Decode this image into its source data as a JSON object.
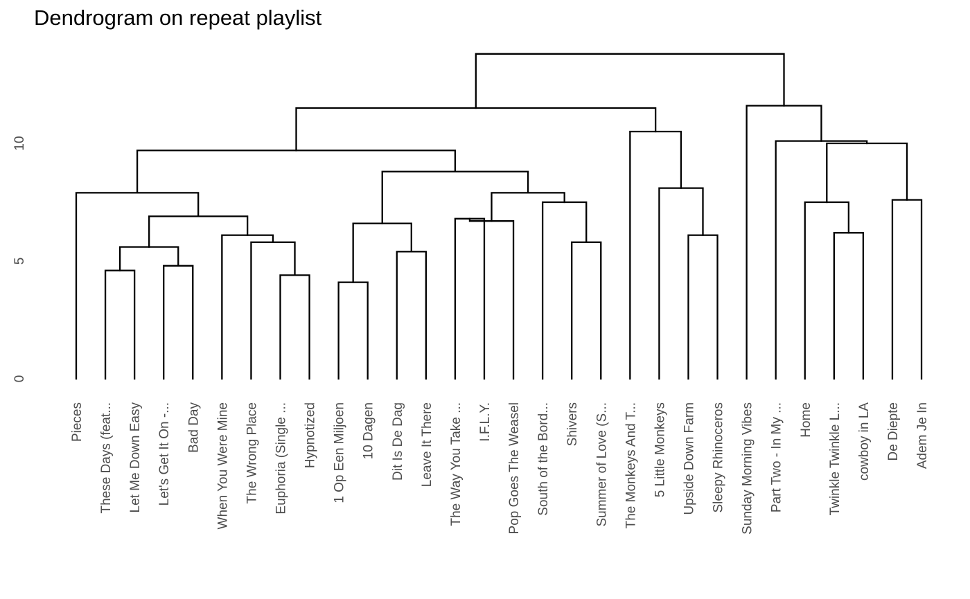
{
  "chart_data": {
    "type": "dendrogram",
    "title": "Dendrogram on repeat playlist",
    "xlabel": "",
    "ylabel": "",
    "ylim": [
      0,
      14
    ],
    "yticks": [
      0,
      5,
      10
    ],
    "grid": false,
    "leaves": [
      "Pieces",
      "These Days (feat...",
      "Let Me Down Easy",
      "Let's Get It On -...",
      "Bad Day",
      "When You Were Mine",
      "The Wrong Place",
      "Euphoria (Single ...",
      "Hypnotized",
      "1 Op Een Miljoen",
      "10 Dagen",
      "Dit Is De Dag",
      "Leave It There",
      "The Way You Take ...",
      "I.F.L.Y.",
      "Pop Goes The Weasel",
      "South of the Bord...",
      "Shivers",
      "Summer of Love (S...",
      "The Monkeys And T...",
      "5 Little Monkeys",
      "Upside Down Farm",
      "Sleepy Rhinoceros",
      "Sunday Morning Vibes",
      "Part Two - In My ...",
      "Home",
      "Twinkle Twinkle L...",
      "cowboy in LA",
      "De Diepte",
      "Adem Je In"
    ],
    "merges": [
      {
        "left": 1,
        "right": 2,
        "height": 4.6
      },
      {
        "left": 3,
        "right": 4,
        "height": 4.8
      },
      {
        "left": 7,
        "right": 8,
        "height": 4.4
      },
      {
        "left": 9,
        "right": 10,
        "height": 4.1
      },
      {
        "left": 11,
        "right": 12,
        "height": 5.4
      },
      {
        "left": 17,
        "right": 18,
        "height": 5.8
      },
      {
        "left": 21,
        "right": 22,
        "height": 6.1
      },
      {
        "left": 26,
        "right": 27,
        "height": 6.2
      },
      {
        "left": 13,
        "right": 14,
        "height": 6.8
      },
      {
        "left": "m0",
        "right": "m1",
        "height": 5.6
      },
      {
        "left": 6,
        "right": "m2",
        "height": 5.8
      },
      {
        "left": 5,
        "right": "m10",
        "height": 6.1
      },
      {
        "left": "m8",
        "right": 15,
        "height": 6.7
      },
      {
        "left": "m3",
        "right": "m4",
        "height": 6.6
      },
      {
        "left": 16,
        "right": "m5",
        "height": 7.5
      },
      {
        "left": 25,
        "right": "m7",
        "height": 7.5
      },
      {
        "left": 28,
        "right": 29,
        "height": 7.6
      },
      {
        "left": "m9",
        "right": "m11",
        "height": 6.9
      },
      {
        "left": "m12",
        "right": "m14",
        "height": 7.9
      },
      {
        "left": 0,
        "right": "m17",
        "height": 7.9
      },
      {
        "left": 20,
        "right": "m6",
        "height": 8.1
      },
      {
        "left": "m13",
        "right": "m18",
        "height": 8.8
      },
      {
        "left": "m19",
        "right": "m21",
        "height": 9.7
      },
      {
        "left": "m15",
        "right": "m16",
        "height": 10.0
      },
      {
        "left": 24,
        "right": "m23",
        "height": 10.1
      },
      {
        "left": 19,
        "right": "m20",
        "height": 10.5
      },
      {
        "left": "m22",
        "right": "m25",
        "height": 11.5
      },
      {
        "left": 23,
        "right": "m24",
        "height": 11.6
      },
      {
        "left": "m26",
        "right": "m27",
        "height": 13.8
      }
    ]
  }
}
